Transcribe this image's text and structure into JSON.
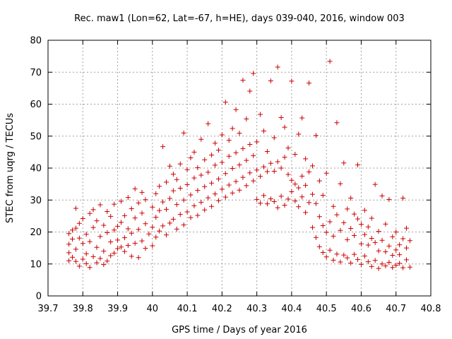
{
  "chart_data": {
    "type": "scatter",
    "title": "Rec. maw1 (Lon=62, Lat=-67, h=HE), days 039-040, 2016, window 003",
    "xlabel": "GPS time / Days of year 2016",
    "ylabel": "STEC from uqrg / TECUs",
    "xlim": [
      39.7,
      40.8
    ],
    "ylim": [
      0,
      80
    ],
    "xticks": [
      "39.7",
      "39.8",
      "39.9",
      "40",
      "40.1",
      "40.2",
      "40.3",
      "40.4",
      "40.5",
      "40.6",
      "40.7",
      "40.8"
    ],
    "yticks": [
      "0",
      "10",
      "20",
      "30",
      "40",
      "50",
      "60",
      "70",
      "80"
    ],
    "grid": true,
    "marker": "+",
    "color": "#cc0000",
    "series": [
      {
        "points": [
          [
            39.76,
            11.0
          ],
          [
            39.76,
            13.5
          ],
          [
            39.76,
            16.2
          ],
          [
            39.76,
            19.5
          ],
          [
            39.77,
            20.6
          ],
          [
            39.77,
            12.1
          ],
          [
            39.77,
            17.8
          ],
          [
            39.78,
            27.4
          ],
          [
            39.78,
            10.8
          ],
          [
            39.78,
            14.6
          ],
          [
            39.78,
            21.2
          ],
          [
            39.79,
            9.3
          ],
          [
            39.79,
            18.1
          ],
          [
            39.79,
            22.7
          ],
          [
            39.8,
            11.5
          ],
          [
            39.8,
            16.4
          ],
          [
            39.8,
            24.2
          ],
          [
            39.81,
            10.1
          ],
          [
            39.81,
            13.2
          ],
          [
            39.81,
            19.3
          ],
          [
            39.82,
            25.8
          ],
          [
            39.82,
            8.9
          ],
          [
            39.82,
            17.0
          ],
          [
            39.83,
            12.3
          ],
          [
            39.83,
            21.4
          ],
          [
            39.83,
            27.0
          ],
          [
            39.84,
            10.4
          ],
          [
            39.84,
            15.2
          ],
          [
            39.84,
            23.5
          ],
          [
            39.85,
            11.7
          ],
          [
            39.85,
            18.6
          ],
          [
            39.85,
            28.5
          ],
          [
            39.86,
            9.8
          ],
          [
            39.86,
            14.0
          ],
          [
            39.86,
            22.1
          ],
          [
            39.87,
            10.9
          ],
          [
            39.87,
            19.8
          ],
          [
            39.87,
            26.4
          ],
          [
            39.88,
            12.6
          ],
          [
            39.88,
            16.9
          ],
          [
            39.88,
            24.9
          ],
          [
            39.89,
            13.4
          ],
          [
            39.89,
            20.6
          ],
          [
            39.89,
            28.7
          ],
          [
            39.9,
            14.8
          ],
          [
            39.9,
            17.5
          ],
          [
            39.9,
            21.8
          ],
          [
            39.91,
            15.3
          ],
          [
            39.91,
            23.0
          ],
          [
            39.91,
            29.6
          ],
          [
            39.92,
            13.9
          ],
          [
            39.92,
            18.2
          ],
          [
            39.92,
            25.1
          ],
          [
            39.93,
            15.8
          ],
          [
            39.93,
            21.0
          ],
          [
            39.93,
            30.8
          ],
          [
            39.94,
            12.4
          ],
          [
            39.94,
            19.6
          ],
          [
            39.94,
            27.3
          ],
          [
            39.95,
            16.5
          ],
          [
            39.95,
            24.4
          ],
          [
            39.95,
            33.5
          ],
          [
            39.96,
            12.0
          ],
          [
            39.96,
            20.8
          ],
          [
            39.96,
            29.1
          ],
          [
            39.97,
            17.2
          ],
          [
            39.97,
            25.9
          ],
          [
            39.97,
            32.4
          ],
          [
            39.98,
            14.9
          ],
          [
            39.98,
            22.6
          ],
          [
            39.98,
            30.1
          ],
          [
            39.99,
            19.4
          ],
          [
            40.0,
            15.7
          ],
          [
            40.0,
            21.5
          ],
          [
            40.0,
            27.8
          ],
          [
            40.01,
            18.4
          ],
          [
            40.01,
            24.6
          ],
          [
            40.01,
            32.0
          ],
          [
            40.02,
            20.3
          ],
          [
            40.02,
            26.7
          ],
          [
            40.02,
            34.3
          ],
          [
            40.03,
            21.9
          ],
          [
            40.03,
            29.4
          ],
          [
            40.03,
            46.7
          ],
          [
            40.04,
            19.1
          ],
          [
            40.04,
            27.1
          ],
          [
            40.04,
            35.6
          ],
          [
            40.05,
            22.8
          ],
          [
            40.05,
            30.5
          ],
          [
            40.05,
            40.6
          ],
          [
            40.06,
            24.0
          ],
          [
            40.06,
            32.9
          ],
          [
            40.06,
            38.1
          ],
          [
            40.07,
            20.9
          ],
          [
            40.07,
            28.6
          ],
          [
            40.07,
            36.4
          ],
          [
            40.08,
            25.5
          ],
          [
            40.08,
            33.7
          ],
          [
            40.08,
            41.3
          ],
          [
            40.09,
            22.2
          ],
          [
            40.09,
            30.0
          ],
          [
            40.09,
            51.0
          ],
          [
            40.1,
            26.3
          ],
          [
            40.1,
            34.8
          ],
          [
            40.1,
            39.5
          ],
          [
            40.11,
            24.5
          ],
          [
            40.11,
            31.6
          ],
          [
            40.11,
            43.2
          ],
          [
            40.12,
            28.2
          ],
          [
            40.12,
            36.9
          ],
          [
            40.12,
            45.0
          ],
          [
            40.13,
            25.2
          ],
          [
            40.13,
            33.0
          ],
          [
            40.13,
            40.1
          ],
          [
            40.14,
            29.3
          ],
          [
            40.14,
            37.8
          ],
          [
            40.14,
            49.0
          ],
          [
            40.15,
            26.9
          ],
          [
            40.15,
            34.2
          ],
          [
            40.15,
            42.6
          ],
          [
            40.16,
            30.7
          ],
          [
            40.16,
            38.7
          ],
          [
            40.16,
            53.9
          ],
          [
            40.17,
            28.0
          ],
          [
            40.17,
            35.3
          ],
          [
            40.17,
            44.1
          ],
          [
            40.18,
            31.9
          ],
          [
            40.18,
            40.9
          ],
          [
            40.18,
            47.8
          ],
          [
            40.19,
            29.8
          ],
          [
            40.19,
            36.6
          ],
          [
            40.19,
            45.6
          ],
          [
            40.2,
            33.4
          ],
          [
            40.2,
            41.8
          ],
          [
            40.2,
            50.4
          ],
          [
            40.21,
            30.9
          ],
          [
            40.21,
            38.3
          ],
          [
            40.21,
            60.6
          ],
          [
            40.22,
            34.7
          ],
          [
            40.22,
            43.7
          ],
          [
            40.22,
            48.7
          ],
          [
            40.23,
            32.2
          ],
          [
            40.23,
            39.9
          ],
          [
            40.23,
            52.4
          ],
          [
            40.24,
            35.8
          ],
          [
            40.24,
            44.8
          ],
          [
            40.24,
            58.3
          ],
          [
            40.25,
            33.1
          ],
          [
            40.25,
            41.0
          ],
          [
            40.25,
            50.9
          ],
          [
            40.26,
            37.1
          ],
          [
            40.26,
            46.1
          ],
          [
            40.26,
            67.5
          ],
          [
            40.27,
            34.5
          ],
          [
            40.27,
            42.4
          ],
          [
            40.27,
            55.4
          ],
          [
            40.28,
            38.5
          ],
          [
            40.28,
            47.4
          ],
          [
            40.28,
            64.1
          ],
          [
            40.29,
            36.0
          ],
          [
            40.29,
            43.9
          ],
          [
            40.29,
            69.6
          ],
          [
            40.3,
            30.2
          ],
          [
            40.3,
            39.4
          ],
          [
            40.3,
            48.2
          ],
          [
            40.31,
            29.0
          ],
          [
            40.31,
            37.4
          ],
          [
            40.31,
            56.8
          ],
          [
            40.32,
            31.4
          ],
          [
            40.32,
            40.4
          ],
          [
            40.32,
            51.6
          ],
          [
            40.33,
            28.8
          ],
          [
            40.33,
            38.9
          ],
          [
            40.33,
            45.2
          ],
          [
            40.34,
            30.4
          ],
          [
            40.34,
            41.5
          ],
          [
            40.34,
            67.3
          ],
          [
            40.35,
            29.5
          ],
          [
            40.35,
            39.0
          ],
          [
            40.35,
            49.5
          ],
          [
            40.36,
            27.6
          ],
          [
            40.36,
            42.0
          ],
          [
            40.36,
            71.6
          ],
          [
            40.37,
            31.2
          ],
          [
            40.37,
            40.0
          ],
          [
            40.37,
            55.8
          ],
          [
            40.38,
            28.4
          ],
          [
            40.38,
            43.4
          ],
          [
            40.38,
            52.8
          ],
          [
            40.39,
            30.3
          ],
          [
            40.39,
            38.0
          ],
          [
            40.39,
            46.3
          ],
          [
            40.4,
            32.6
          ],
          [
            40.4,
            36.2
          ],
          [
            40.4,
            67.2
          ],
          [
            40.41,
            29.7
          ],
          [
            40.41,
            35.0
          ],
          [
            40.41,
            44.3
          ],
          [
            40.42,
            27.9
          ],
          [
            40.42,
            33.8
          ],
          [
            40.42,
            50.6
          ],
          [
            40.43,
            31.0
          ],
          [
            40.43,
            37.5
          ],
          [
            40.43,
            55.7
          ],
          [
            40.44,
            26.1
          ],
          [
            40.44,
            34.6
          ],
          [
            40.44,
            42.9
          ],
          [
            40.45,
            29.2
          ],
          [
            40.45,
            38.8
          ],
          [
            40.45,
            66.6
          ],
          [
            40.46,
            21.4
          ],
          [
            40.46,
            31.8
          ],
          [
            40.46,
            40.7
          ],
          [
            40.47,
            18.3
          ],
          [
            40.47,
            28.9
          ],
          [
            40.47,
            50.2
          ],
          [
            40.48,
            15.4
          ],
          [
            40.48,
            24.8
          ],
          [
            40.48,
            36.0
          ],
          [
            40.49,
            13.6
          ],
          [
            40.49,
            22.0
          ],
          [
            40.49,
            31.5
          ],
          [
            40.5,
            12.2
          ],
          [
            40.5,
            19.9
          ],
          [
            40.5,
            38.4
          ],
          [
            40.51,
            14.3
          ],
          [
            40.51,
            23.2
          ],
          [
            40.51,
            73.4
          ],
          [
            40.52,
            11.2
          ],
          [
            40.52,
            18.7
          ],
          [
            40.52,
            28.0
          ],
          [
            40.53,
            13.1
          ],
          [
            40.53,
            25.4
          ],
          [
            40.53,
            54.2
          ],
          [
            40.54,
            10.6
          ],
          [
            40.54,
            20.5
          ],
          [
            40.54,
            35.1
          ],
          [
            40.55,
            12.8
          ],
          [
            40.55,
            22.9
          ],
          [
            40.55,
            41.6
          ],
          [
            40.56,
            11.9
          ],
          [
            40.56,
            17.6
          ],
          [
            40.56,
            27.2
          ],
          [
            40.57,
            10.3
          ],
          [
            40.57,
            21.1
          ],
          [
            40.57,
            30.6
          ],
          [
            40.58,
            13.0
          ],
          [
            40.58,
            18.9
          ],
          [
            40.58,
            25.6
          ],
          [
            40.59,
            11.4
          ],
          [
            40.59,
            24.1
          ],
          [
            40.59,
            41.0
          ],
          [
            40.6,
            9.9
          ],
          [
            40.6,
            16.3
          ],
          [
            40.6,
            22.4
          ],
          [
            40.61,
            12.5
          ],
          [
            40.61,
            19.2
          ],
          [
            40.61,
            26.8
          ],
          [
            40.62,
            10.7
          ],
          [
            40.62,
            15.9
          ],
          [
            40.62,
            21.6
          ],
          [
            40.63,
            9.2
          ],
          [
            40.63,
            18.0
          ],
          [
            40.63,
            24.3
          ],
          [
            40.64,
            11.1
          ],
          [
            40.64,
            16.7
          ],
          [
            40.64,
            34.9
          ],
          [
            40.65,
            8.6
          ],
          [
            40.65,
            14.1
          ],
          [
            40.65,
            20.2
          ],
          [
            40.66,
            10.0
          ],
          [
            40.66,
            17.4
          ],
          [
            40.66,
            31.3
          ],
          [
            40.67,
            9.4
          ],
          [
            40.67,
            13.8
          ],
          [
            40.67,
            22.5
          ],
          [
            40.68,
            10.5
          ],
          [
            40.68,
            15.6
          ],
          [
            40.68,
            30.2
          ],
          [
            40.69,
            8.9
          ],
          [
            40.69,
            12.7
          ],
          [
            40.69,
            18.5
          ],
          [
            40.7,
            9.6
          ],
          [
            40.7,
            14.4
          ],
          [
            40.7,
            20.0
          ],
          [
            40.71,
            10.2
          ],
          [
            40.71,
            16.0
          ],
          [
            40.71,
            12.9
          ],
          [
            40.72,
            8.8
          ],
          [
            40.72,
            17.9
          ],
          [
            40.72,
            30.6
          ],
          [
            40.73,
            11.3
          ],
          [
            40.73,
            15.0
          ],
          [
            40.73,
            21.2
          ],
          [
            40.74,
            9.0
          ],
          [
            40.74,
            17.3
          ]
        ]
      }
    ]
  }
}
